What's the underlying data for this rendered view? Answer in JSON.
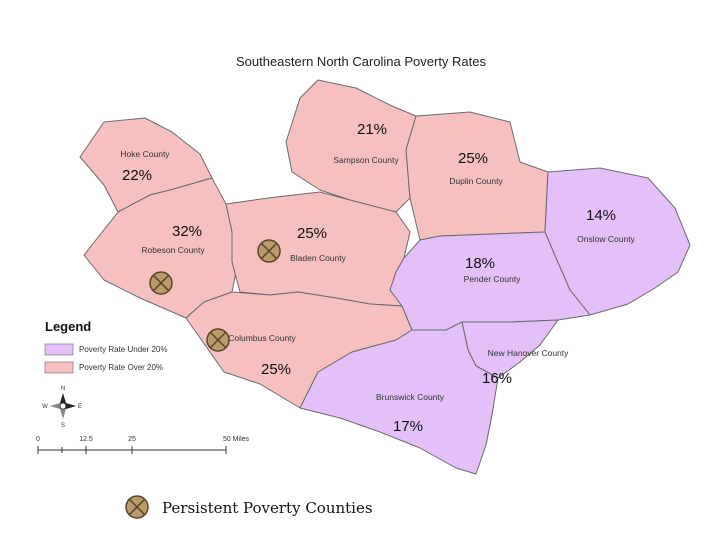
{
  "map_title": "Southeastern North Carolina Poverty Rates",
  "colors": {
    "over_20": "#f6c0c0",
    "under_20": "#e3c0f8",
    "border": "#6b6b6b",
    "marker_fill": "#b99a6a",
    "marker_stroke": "#5a4328"
  },
  "counties": {
    "hoke": {
      "name": "Hoke County",
      "rate": "22%",
      "category": "over"
    },
    "sampson": {
      "name": "Sampson County",
      "rate": "21%",
      "category": "over"
    },
    "duplin": {
      "name": "Duplin County",
      "rate": "25%",
      "category": "over"
    },
    "onslow": {
      "name": "Onslow County",
      "rate": "14%",
      "category": "under"
    },
    "robeson": {
      "name": "Robeson County",
      "rate": "32%",
      "category": "over",
      "persistent": true
    },
    "bladen": {
      "name": "Bladen County",
      "rate": "25%",
      "category": "over",
      "persistent": true
    },
    "pender": {
      "name": "Pender County",
      "rate": "18%",
      "category": "under"
    },
    "columbus": {
      "name": "Columbus County",
      "rate": "25%",
      "category": "over",
      "persistent": true
    },
    "new_hanover": {
      "name": "New Hanover County",
      "rate": "16%",
      "category": "under"
    },
    "brunswick": {
      "name": "Brunswick County",
      "rate": "17%",
      "category": "under"
    }
  },
  "legend": {
    "title": "Legend",
    "under_label": "Poverty Rate Under 20%",
    "over_label": "Poverty Rate Over 20%"
  },
  "compass": {
    "n": "N",
    "s": "S",
    "e": "E",
    "w": "W"
  },
  "scale_bar": {
    "ticks": [
      "0",
      "12.5",
      "25",
      "50 Miles"
    ]
  },
  "marker_legend": "Persistent Poverty Counties"
}
